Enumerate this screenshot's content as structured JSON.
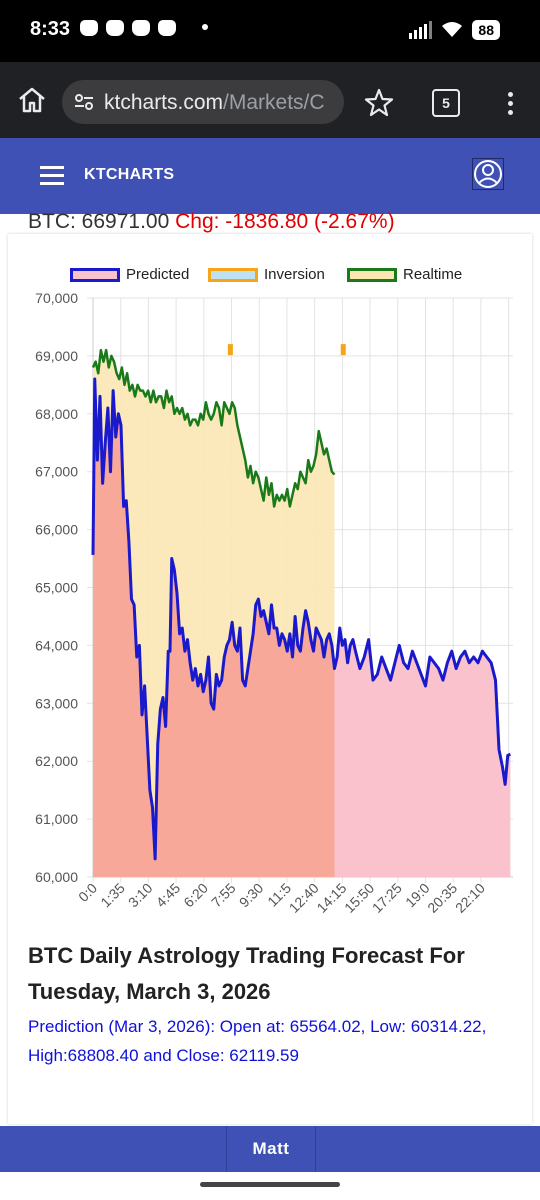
{
  "status_bar": {
    "time": "8:33",
    "battery": "88"
  },
  "browser": {
    "url_host": "ktcharts.com",
    "url_path": "/Markets/C",
    "tab_count": "5"
  },
  "app": {
    "title": "KTCHARTS"
  },
  "ticker": {
    "price": "BTC: 66971.00",
    "change": "Chg: -1836.80 (-2.67%)"
  },
  "legend": [
    {
      "label": "Predicted",
      "fill": "#f9c2cc",
      "border": "#1a1acc"
    },
    {
      "label": "Inversion",
      "fill": "#bfe0f0",
      "border": "#f5a51a"
    },
    {
      "label": "Realtime",
      "fill": "#fbe7b4",
      "border": "#1a7a1a"
    }
  ],
  "chart_data": {
    "type": "line",
    "title": "",
    "xlabel": "",
    "ylabel": "",
    "ylim": [
      60000,
      70000
    ],
    "yticks": [
      "60,000",
      "61,000",
      "62,000",
      "63,000",
      "64,000",
      "65,000",
      "66,000",
      "67,000",
      "68,000",
      "69,000",
      "70,000"
    ],
    "xticks": [
      "0:0",
      "1:35",
      "3:10",
      "4:45",
      "6:20",
      "7:55",
      "9:30",
      "11:5",
      "12:40",
      "14:15",
      "15:50",
      "17:25",
      "19:0",
      "20:35",
      "22:10"
    ],
    "grid": true,
    "legend_position": "top",
    "series": [
      {
        "name": "Predicted",
        "color": "#1a1acc",
        "fill": "#f9c2cc",
        "x": [
          0,
          0.1,
          0.25,
          0.4,
          0.55,
          0.7,
          0.85,
          1.0,
          1.15,
          1.3,
          1.45,
          1.6,
          1.75,
          1.9,
          2.05,
          2.2,
          2.35,
          2.5,
          2.65,
          2.8,
          2.95,
          3.1,
          3.25,
          3.4,
          3.55,
          3.7,
          3.85,
          4.0,
          4.15,
          4.3,
          4.4,
          4.5,
          4.65,
          4.8,
          4.95,
          5.1,
          5.25,
          5.4,
          5.55,
          5.7,
          5.85,
          6.0,
          6.15,
          6.3,
          6.45,
          6.6,
          6.75,
          6.9,
          7.05,
          7.2,
          7.35,
          7.5,
          7.65,
          7.8,
          7.95,
          8.1,
          8.25,
          8.4,
          8.55,
          8.7,
          8.85,
          9.0,
          9.15,
          9.3,
          9.45,
          9.6,
          9.75,
          9.9,
          10.05,
          10.2,
          10.35,
          10.5,
          10.65,
          10.8,
          10.95,
          11.1,
          11.25,
          11.4,
          11.55,
          11.7,
          11.85,
          12.0,
          12.15,
          12.3,
          12.45,
          12.6,
          12.75,
          12.9,
          13.05,
          13.2,
          13.35,
          13.5,
          13.65,
          13.8,
          13.95,
          14.1,
          14.25,
          14.4,
          14.55,
          14.7,
          14.85,
          15.0,
          15.25,
          15.5,
          15.75,
          16.0,
          16.25,
          16.5,
          16.75,
          17.0,
          17.25,
          17.5,
          17.75,
          18.0,
          18.25,
          18.5,
          18.75,
          19.0,
          19.25,
          19.5,
          19.75,
          20.0,
          20.25,
          20.5,
          20.75,
          21.0,
          21.25,
          21.5,
          21.75,
          22.0,
          22.25,
          22.5,
          22.75,
          23.0,
          23.2,
          23.4,
          23.55,
          23.7,
          23.85
        ],
        "y": [
          65564,
          68600,
          67200,
          68300,
          66800,
          67500,
          68100,
          67000,
          68400,
          67600,
          68000,
          67800,
          66400,
          66500,
          65800,
          64800,
          64700,
          63800,
          64000,
          62800,
          63300,
          62400,
          61500,
          61200,
          60314,
          62300,
          62900,
          63100,
          62600,
          63900,
          63900,
          65500,
          65300,
          64900,
          64200,
          64300,
          63900,
          64100,
          63700,
          63400,
          63600,
          63300,
          63500,
          63200,
          63400,
          63800,
          63000,
          62900,
          63500,
          63300,
          63400,
          63800,
          64000,
          64100,
          64400,
          64000,
          63900,
          64300,
          63400,
          63300,
          63600,
          63900,
          64200,
          64700,
          64800,
          64500,
          64600,
          64400,
          64200,
          64700,
          64300,
          64300,
          64000,
          64200,
          64100,
          63900,
          64200,
          63800,
          64500,
          64000,
          63900,
          64300,
          64600,
          64400,
          64100,
          63900,
          64300,
          64200,
          64100,
          63800,
          64100,
          64200,
          64000,
          63600,
          63800,
          64300,
          64000,
          64100,
          63700,
          64000,
          64100,
          63900,
          63600,
          63800,
          64100,
          63400,
          63500,
          63800,
          63600,
          63400,
          63700,
          64000,
          63700,
          63600,
          63900,
          63700,
          63500,
          63300,
          63800,
          63700,
          63600,
          63400,
          63700,
          63900,
          63600,
          63800,
          63900,
          63700,
          63800,
          63700,
          63900,
          63800,
          63700,
          63400,
          62200,
          61900,
          61600,
          62100,
          62119.59
        ]
      },
      {
        "name": "Realtime",
        "color": "#1a7a1a",
        "fill": "#fbe7b4",
        "x": [
          0,
          0.15,
          0.3,
          0.45,
          0.6,
          0.75,
          0.9,
          1.05,
          1.2,
          1.35,
          1.5,
          1.65,
          1.8,
          1.95,
          2.1,
          2.25,
          2.4,
          2.55,
          2.7,
          2.85,
          3.0,
          3.15,
          3.3,
          3.45,
          3.6,
          3.75,
          3.9,
          4.05,
          4.2,
          4.35,
          4.5,
          4.65,
          4.8,
          4.95,
          5.1,
          5.25,
          5.4,
          5.55,
          5.7,
          5.85,
          6.0,
          6.15,
          6.3,
          6.45,
          6.6,
          6.75,
          6.9,
          7.05,
          7.2,
          7.35,
          7.5,
          7.65,
          7.8,
          7.95,
          8.1,
          8.25,
          8.4,
          8.55,
          8.7,
          8.85,
          9.0,
          9.15,
          9.3,
          9.45,
          9.6,
          9.75,
          9.9,
          10.05,
          10.2,
          10.35,
          10.5,
          10.65,
          10.8,
          10.95,
          11.1,
          11.25,
          11.4,
          11.55,
          11.7,
          11.85,
          12.0,
          12.15,
          12.3,
          12.45,
          12.6,
          12.75,
          12.9,
          13.05,
          13.2,
          13.35,
          13.5,
          13.65,
          13.8
        ],
        "y": [
          68800,
          68900,
          68700,
          69100,
          68900,
          69100,
          68800,
          69000,
          68900,
          68700,
          68600,
          68800,
          68500,
          68700,
          68400,
          68500,
          68300,
          68500,
          68400,
          68400,
          68300,
          68400,
          68200,
          68400,
          68200,
          68300,
          68300,
          68100,
          68400,
          68200,
          68300,
          68000,
          68100,
          68000,
          68100,
          67900,
          68000,
          67800,
          67900,
          67900,
          67800,
          68000,
          67900,
          68200,
          68000,
          67900,
          68000,
          68200,
          68100,
          67800,
          68200,
          68100,
          68000,
          68200,
          68100,
          67800,
          67600,
          67400,
          67200,
          66900,
          67100,
          66800,
          67000,
          66900,
          66700,
          66500,
          66900,
          66600,
          66800,
          66400,
          66600,
          66500,
          66600,
          66500,
          66700,
          66400,
          66600,
          66800,
          66700,
          67000,
          66900,
          66800,
          67200,
          67000,
          67100,
          67300,
          67700,
          67500,
          67300,
          67400,
          67200,
          67000,
          66950
        ]
      }
    ],
    "inversion_marks": [
      {
        "x": 7.85,
        "y": 69100
      },
      {
        "x": 14.3,
        "y": 69100
      }
    ],
    "x_max": 24
  },
  "forecast": {
    "title": "BTC Daily Astrology Trading Forecast For Tuesday, March 3, 2026",
    "text": "Prediction (Mar 3, 2026): Open at: 65564.02, Low: 60314.22, High:68808.40 and Close: 62119.59"
  },
  "bottom_nav": {
    "user_label": "Matt"
  }
}
